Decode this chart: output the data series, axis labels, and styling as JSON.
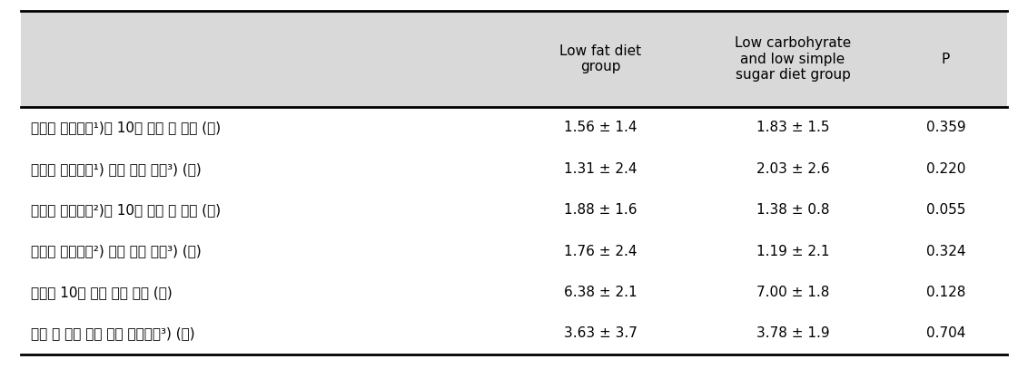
{
  "col_headers": [
    "Low fat diet\ngroup",
    "Low carbohyrate\nand low simple\nsugar diet group",
    "P"
  ],
  "rows": [
    {
      "label": "격렬한 신체활동¹)을 10분 이상 한 날수 (일)",
      "col1": "1.56 ± 1.4",
      "col2": "1.83 ± 1.5",
      "col3": "0.359"
    },
    {
      "label": "격렬한 신체활동¹) 하루 평균 시간³) (분)",
      "col1": "1.31 ± 2.4",
      "col2": "2.03 ± 2.6",
      "col3": "0.220"
    },
    {
      "label": "중등도 신체활동²)을 10분 이상 한 날수 (일)",
      "col1": "1.88 ± 1.6",
      "col2": "1.38 ± 0.8",
      "col3": "0.055"
    },
    {
      "label": "중등도 신체활동²) 하루 평균 시간³) (분)",
      "col1": "1.76 ± 2.4",
      "col2": "1.19 ± 2.1",
      "col3": "0.324"
    },
    {
      "label": "적어도 10분 이상 걸은 날수 (일)",
      "col1": "6.38 ± 2.1",
      "col2": "7.00 ± 1.8",
      "col3": "0.128"
    },
    {
      "label": "걷는 날 하루 동안 걷는 평균시간³) (분)",
      "col1": "3.63 ± 3.7",
      "col2": "3.78 ± 1.9",
      "col3": "0.704"
    }
  ],
  "header_bg": "#d9d9d9",
  "body_bg": "#ffffff",
  "text_color": "#000000",
  "font_size": 11,
  "header_font_size": 11
}
